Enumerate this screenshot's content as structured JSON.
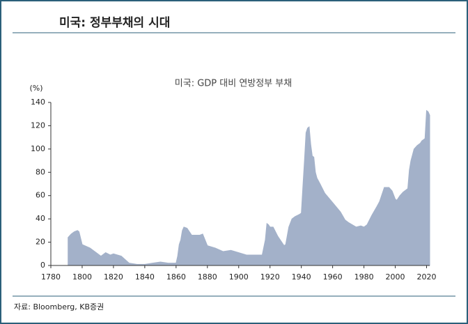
{
  "header": {
    "title": "미국: 정부부채의 시대"
  },
  "chart_data": {
    "type": "area",
    "title": "미국: GDP 대비 연방정부 부채",
    "y_label": "(%)",
    "color": "#a3b1c9",
    "x": [
      1791,
      1793,
      1795,
      1797,
      1798,
      1800,
      1805,
      1810,
      1812,
      1815,
      1818,
      1820,
      1825,
      1830,
      1835,
      1840,
      1845,
      1850,
      1855,
      1860,
      1861,
      1862,
      1863,
      1864,
      1865,
      1867,
      1870,
      1875,
      1877,
      1880,
      1885,
      1890,
      1895,
      1900,
      1905,
      1910,
      1915,
      1917,
      1918,
      1919,
      1920,
      1922,
      1925,
      1929,
      1930,
      1932,
      1934,
      1936,
      1939,
      1940,
      1941,
      1942,
      1943,
      1944,
      1945,
      1946,
      1947,
      1948,
      1949,
      1950,
      1952,
      1955,
      1960,
      1965,
      1968,
      1970,
      1975,
      1978,
      1980,
      1982,
      1985,
      1988,
      1990,
      1992,
      1993,
      1996,
      1998,
      2000,
      2001,
      2003,
      2005,
      2008,
      2009,
      2010,
      2011,
      2012,
      2014,
      2016,
      2017,
      2018,
      2019,
      2020,
      2021,
      2022
    ],
    "values": [
      24,
      27,
      29,
      30,
      29,
      18,
      15,
      10,
      8,
      11,
      9,
      10,
      8,
      2,
      1,
      1,
      2,
      3,
      2,
      2,
      8,
      18,
      22,
      30,
      33,
      32,
      26,
      26,
      27,
      17,
      15,
      12,
      13,
      11,
      9,
      9,
      9,
      22,
      36,
      35,
      33,
      33,
      25,
      17,
      18,
      33,
      40,
      42,
      44,
      45,
      68,
      90,
      114,
      118,
      119,
      104,
      94,
      93,
      80,
      75,
      70,
      62,
      54,
      46,
      39,
      37,
      33,
      34,
      33,
      35,
      43,
      50,
      55,
      63,
      67,
      67,
      64,
      57,
      56,
      60,
      63,
      66,
      82,
      90,
      95,
      100,
      103,
      105,
      107,
      108,
      109,
      133,
      132,
      129
    ],
    "xlim": [
      1780,
      2022
    ],
    "xticks": [
      1780,
      1800,
      1820,
      1840,
      1860,
      1880,
      1900,
      1920,
      1940,
      1960,
      1980,
      2000,
      2020
    ],
    "ylim": [
      0,
      140
    ],
    "yticks": [
      0,
      20,
      40,
      60,
      80,
      100,
      120,
      140
    ]
  },
  "source": "자료: Bloomberg, KB증권"
}
